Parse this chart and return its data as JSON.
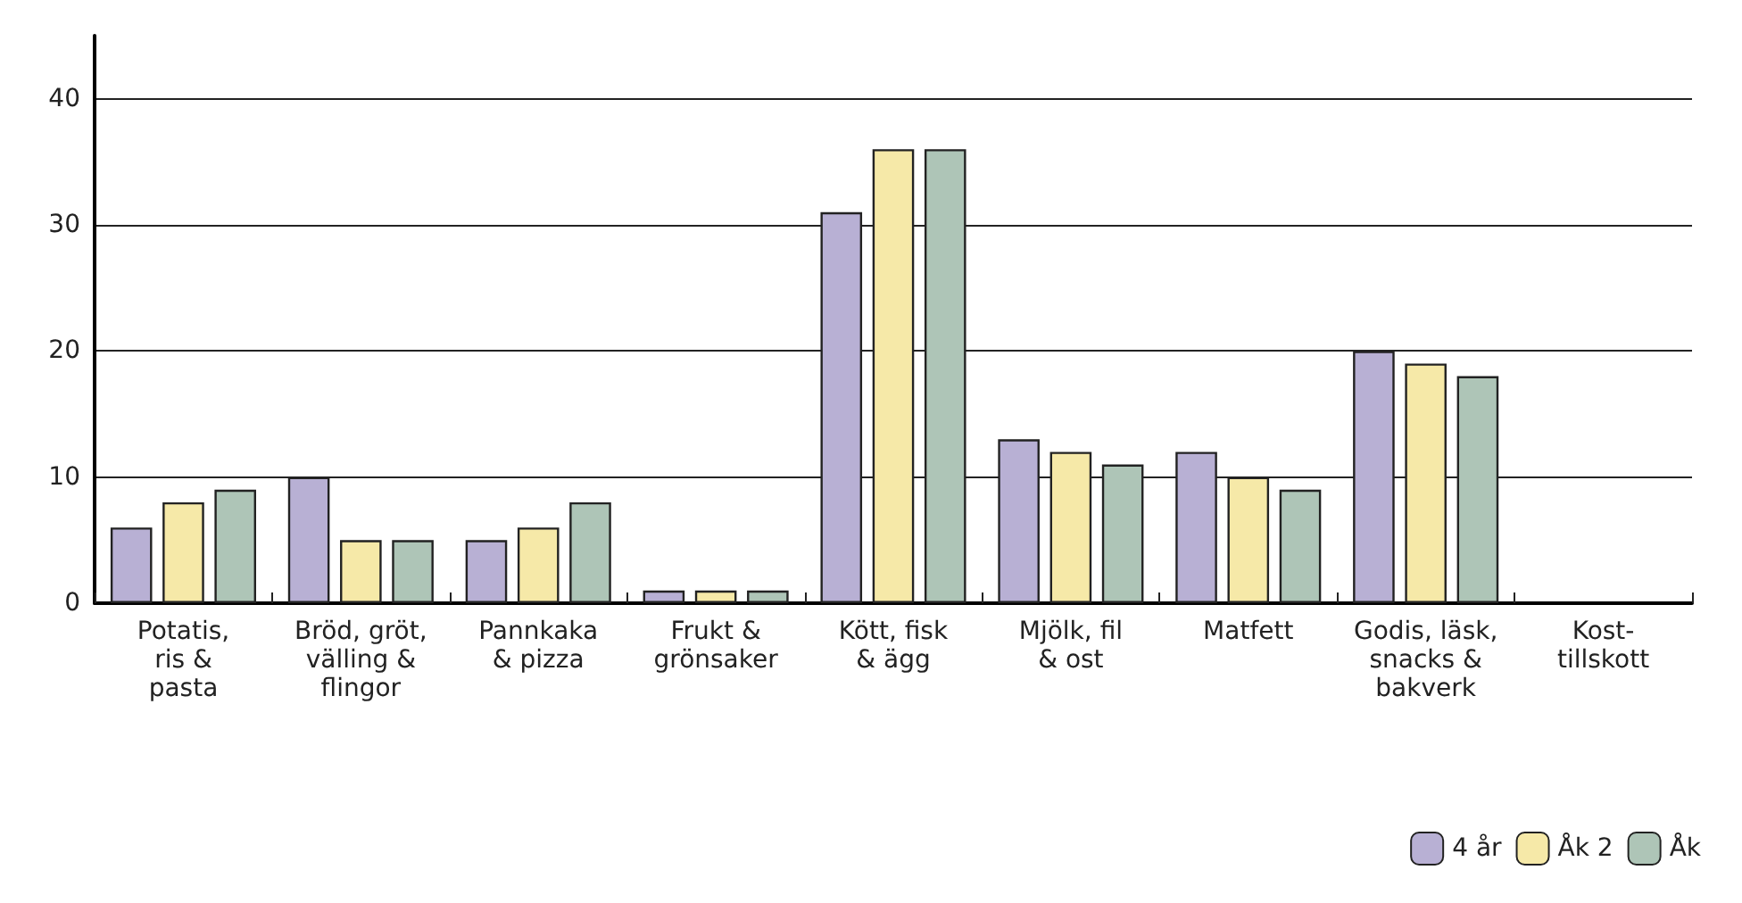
{
  "chart_data": {
    "type": "bar",
    "categories": [
      "Potatis,\nris &\npasta",
      "Bröd, gröt,\nvälling &\nflingor",
      "Pannkaka\n& pizza",
      "Frukt &\ngrönsaker",
      "Kött, fisk\n& ägg",
      "Mjölk, fil\n& ost",
      "Matfett",
      "Godis, läsk,\nsnacks &\nbakverk",
      "Kost-\ntillskott"
    ],
    "series": [
      {
        "name": "4 år",
        "color": "#b8b0d4",
        "values": [
          6,
          10,
          5,
          1,
          31,
          13,
          12,
          20,
          null
        ]
      },
      {
        "name": "Åk 2",
        "color": "#f6e9a8",
        "values": [
          8,
          5,
          6,
          1,
          36,
          12,
          10,
          19,
          null
        ]
      },
      {
        "name": "Åk",
        "color": "#aec5b7",
        "values": [
          9,
          5,
          8,
          1,
          36,
          11,
          9,
          18,
          null
        ]
      }
    ],
    "ylim": [
      0,
      45
    ],
    "yticks": [
      0,
      10,
      20,
      30,
      40
    ],
    "grid": "y",
    "legend": "bottom right"
  }
}
